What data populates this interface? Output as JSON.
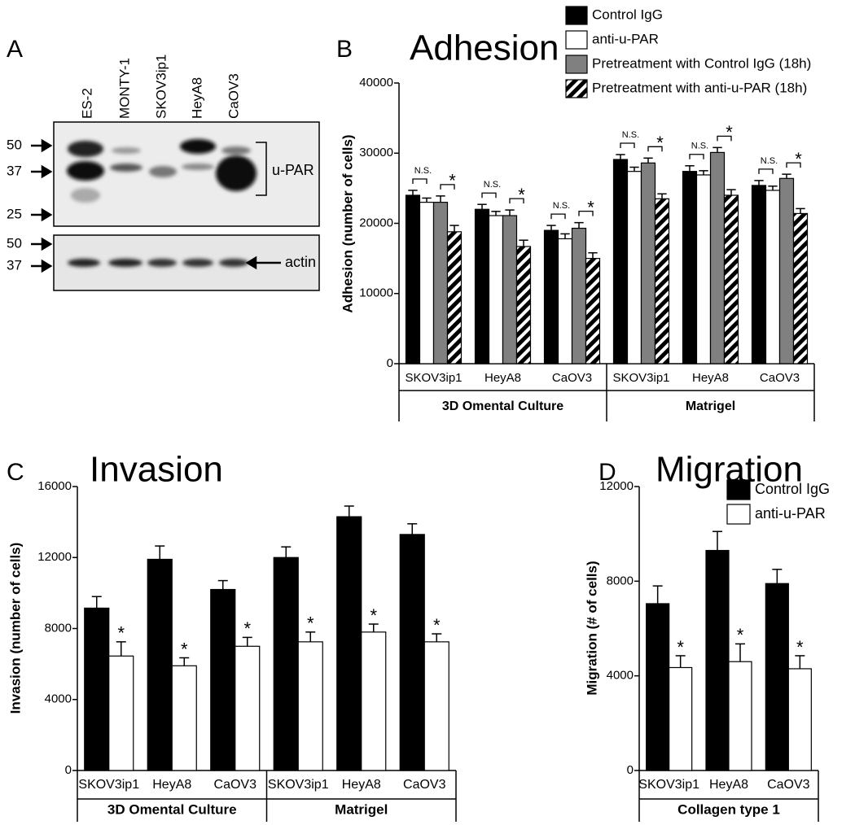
{
  "blot": {
    "panel": "A",
    "lanes": [
      "ES-2",
      "MONTY-1",
      "SKOV3ip1",
      "HeyA8",
      "CaOV3"
    ],
    "markers_upper": [
      50,
      37,
      25
    ],
    "markers_lower": [
      50,
      37
    ],
    "labels": [
      "u-PAR",
      "actin"
    ]
  },
  "chart_data": [
    {
      "type": "bar",
      "panel": "B",
      "title": "Adhesion",
      "ylabel": "Adhesion (number of cells)",
      "categories": [
        "SKOV3ip1",
        "HeyA8",
        "CaOV3",
        "SKOV3ip1",
        "HeyA8",
        "CaOV3"
      ],
      "groups": [
        "3D Omental Culture",
        "Matrigel"
      ],
      "series": [
        {
          "name": "Control IgG",
          "color": "#000000",
          "values": [
            24000,
            22000,
            19000,
            29100,
            27400,
            25400
          ],
          "errors": [
            700,
            700,
            700,
            700,
            800,
            700
          ]
        },
        {
          "name": "anti-u-PAR",
          "color": "#ffffff",
          "values": [
            23000,
            21100,
            17800,
            27400,
            26900,
            24700
          ],
          "errors": [
            600,
            600,
            700,
            600,
            600,
            600
          ]
        },
        {
          "name": "Pretreatment with Control IgG (18h)",
          "color": "#808080",
          "values": [
            23000,
            21100,
            19300,
            28600,
            30100,
            26400
          ],
          "errors": [
            900,
            800,
            800,
            700,
            700,
            600
          ]
        },
        {
          "name": "Pretreatment with anti-u-PAR  (18h)",
          "color": "#000000",
          "pattern": "hatch",
          "values": [
            18800,
            16700,
            15000,
            23500,
            24000,
            21400
          ],
          "errors": [
            900,
            900,
            800,
            700,
            800,
            700
          ]
        }
      ],
      "annotations": [
        [
          "N.S.",
          "*"
        ],
        [
          "N.S.",
          "*"
        ],
        [
          "N.S.",
          "*"
        ],
        [
          "N.S.",
          "*"
        ],
        [
          "N.S.",
          "*"
        ],
        [
          "N.S.",
          "*"
        ]
      ],
      "ylim": [
        0,
        40000
      ],
      "yticks": [
        0,
        10000,
        20000,
        30000,
        40000
      ],
      "legend": "top-right"
    },
    {
      "type": "bar",
      "panel": "C",
      "title": "Invasion",
      "ylabel": "Invasion (number of cells)",
      "categories": [
        "SKOV3ip1",
        "HeyA8",
        "CaOV3",
        "SKOV3ip1",
        "HeyA8",
        "CaOV3"
      ],
      "groups": [
        "3D Omental Culture",
        "Matrigel"
      ],
      "series": [
        {
          "color": "#000000",
          "values": [
            9150,
            11900,
            10200,
            12000,
            14300,
            13300
          ],
          "errors": [
            650,
            750,
            500,
            600,
            600,
            600
          ]
        },
        {
          "color": "#ffffff",
          "values": [
            6450,
            5900,
            7000,
            7250,
            7800,
            7250
          ],
          "errors": [
            800,
            450,
            500,
            550,
            450,
            450
          ]
        }
      ],
      "annotations": [
        "*",
        "*",
        "*",
        "*",
        "*",
        "*"
      ],
      "ylim": [
        0,
        16000
      ],
      "yticks": [
        0,
        4000,
        8000,
        12000,
        16000
      ]
    },
    {
      "type": "bar",
      "panel": "D",
      "title": "Migration",
      "ylabel": "Migration (# of cells)",
      "categories": [
        "SKOV3ip1",
        "HeyA8",
        "CaOV3"
      ],
      "groups": [
        "Collagen type 1"
      ],
      "series": [
        {
          "name": "Control IgG",
          "color": "#000000",
          "values": [
            7050,
            9300,
            7900
          ],
          "errors": [
            750,
            800,
            600
          ]
        },
        {
          "name": "anti-u-PAR",
          "color": "#ffffff",
          "values": [
            4350,
            4600,
            4300
          ],
          "errors": [
            500,
            750,
            550
          ]
        }
      ],
      "annotations": [
        "*",
        "*",
        "*"
      ],
      "ylim": [
        0,
        12000
      ],
      "yticks": [
        0,
        4000,
        8000,
        12000
      ],
      "legend": "top-right"
    }
  ]
}
